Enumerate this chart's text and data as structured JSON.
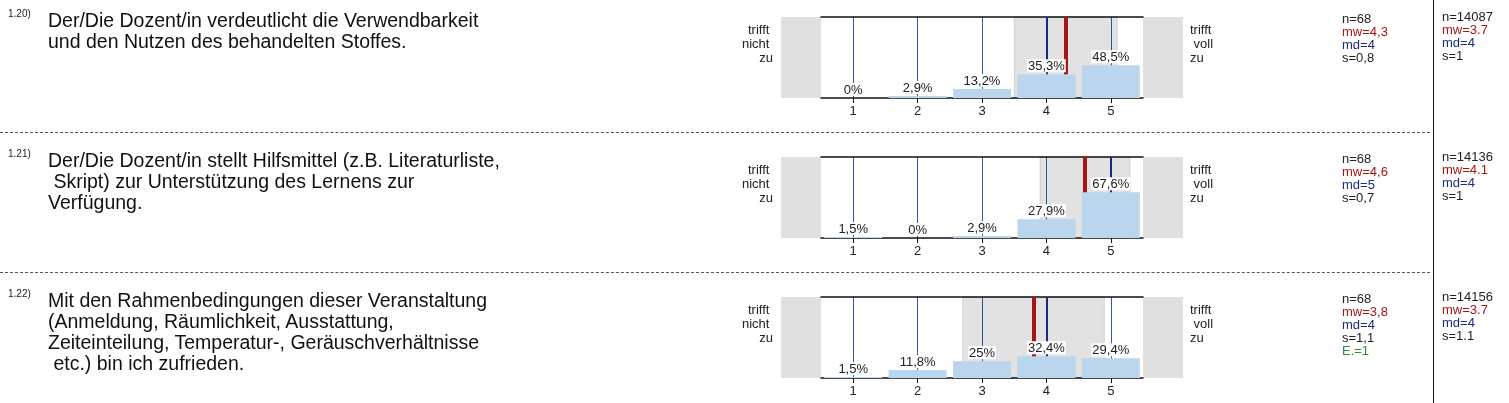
{
  "chart_data": [
    {
      "type": "bar",
      "x": [
        1,
        2,
        3,
        4,
        5
      ],
      "xlim": [
        0.5,
        5.5
      ],
      "xticks": [
        1,
        2,
        3,
        4,
        5
      ],
      "grid": "x",
      "series": [
        {
          "color": "#b9d6ee",
          "values": [
            0,
            2.9,
            13.2,
            35.3,
            48.5
          ],
          "value_labels": [
            "0%",
            "2,9%",
            "13,2%",
            "35,3%",
            "48,5%"
          ]
        }
      ],
      "ref_lines": [
        {
          "axis": "x",
          "value": 4.3,
          "color": "#a51616"
        },
        {
          "axis": "x",
          "value": 4,
          "color": "#1c2a80"
        }
      ],
      "bands": [
        {
          "axis": "x",
          "from": 3.5,
          "to": 5.1,
          "color": "#111111"
        }
      ],
      "annotations": [
        "1.20)",
        "Der/Die Dozent/in verdeutlicht die Verwendbarkeit und den Nutzen des behandelten Stoffes.",
        "trifft nicht zu",
        "trifft voll zu",
        "n=68",
        "mw=4,3",
        "md=4",
        "s=0,8",
        "n=14087",
        "mw=3.7",
        "md=4",
        "s=1"
      ]
    },
    {
      "type": "bar",
      "x": [
        1,
        2,
        3,
        4,
        5
      ],
      "xlim": [
        0.5,
        5.5
      ],
      "xticks": [
        1,
        2,
        3,
        4,
        5
      ],
      "grid": "x",
      "series": [
        {
          "color": "#b9d6ee",
          "values": [
            1.5,
            0,
            2.9,
            27.9,
            67.6
          ],
          "value_labels": [
            "1,5%",
            "0%",
            "2,9%",
            "27,9%",
            "67,6%"
          ]
        }
      ],
      "ref_lines": [
        {
          "axis": "x",
          "value": 4.6,
          "color": "#a51616"
        },
        {
          "axis": "x",
          "value": 5,
          "color": "#1c2a80"
        }
      ],
      "bands": [
        {
          "axis": "x",
          "from": 3.9,
          "to": 5.3,
          "color": "#111111"
        }
      ],
      "annotations": [
        "1.21)",
        "Der/Die Dozent/in stellt Hilfsmittel (z.B. Literaturliste, Skript) zur Unterstützung des Lernens zur Verfügung.",
        "trifft nicht zu",
        "trifft voll zu",
        "n=68",
        "mw=4,6",
        "md=5",
        "s=0,7",
        "n=14136",
        "mw=4.1",
        "md=4",
        "s=1"
      ]
    },
    {
      "type": "bar",
      "x": [
        1,
        2,
        3,
        4,
        5
      ],
      "xlim": [
        0.5,
        5.5
      ],
      "xticks": [
        1,
        2,
        3,
        4,
        5
      ],
      "grid": "x",
      "series": [
        {
          "color": "#b9d6ee",
          "values": [
            1.5,
            11.8,
            25,
            32.4,
            29.4
          ],
          "value_labels": [
            "1,5%",
            "11,8%",
            "25%",
            "32,4%",
            "29,4%"
          ]
        }
      ],
      "ref_lines": [
        {
          "axis": "x",
          "value": 3.8,
          "color": "#a51616"
        },
        {
          "axis": "x",
          "value": 4,
          "color": "#1c2a80"
        }
      ],
      "bands": [
        {
          "axis": "x",
          "from": 2.7,
          "to": 4.9,
          "color": "#111111"
        }
      ],
      "annotations": [
        "1.22)",
        "Mit den Rahmenbedingungen dieser Veranstaltung (Anmeldung, Räumlichkeit, Ausstattung, Zeiteinteilung, Temperatur-, Geräuschverhältnisse etc.) bin ich zufrieden.",
        "trifft nicht zu",
        "trifft voll zu",
        "n=68",
        "mw=3,8",
        "md=4",
        "s=1,1",
        "E.=1",
        "n=14156",
        "mw=3.7",
        "md=4",
        "s=1.1"
      ]
    }
  ]
}
